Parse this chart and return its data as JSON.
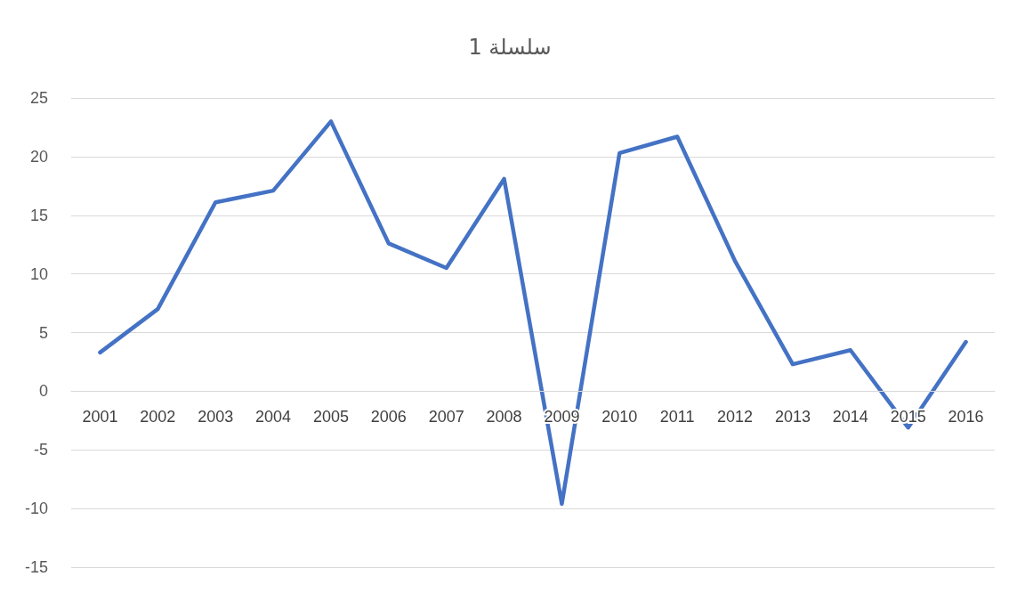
{
  "chart_data": {
    "type": "line",
    "title": "سلسلة 1",
    "categories": [
      "2001",
      "2002",
      "2003",
      "2004",
      "2005",
      "2006",
      "2007",
      "2008",
      "2009",
      "2010",
      "2011",
      "2012",
      "2013",
      "2014",
      "2015",
      "2016"
    ],
    "series": [
      {
        "color": "#4472c4",
        "values": [
          3.3,
          7.0,
          16.1,
          17.1,
          23.0,
          12.6,
          10.5,
          18.1,
          -9.6,
          20.3,
          21.7,
          11.1,
          2.3,
          3.5,
          -3.1,
          4.2
        ]
      }
    ],
    "ylim": [
      -15,
      25
    ],
    "yticks": [
      -15,
      -10,
      -5,
      0,
      5,
      10,
      15,
      20,
      25
    ],
    "grid": "y",
    "marker": "none",
    "line_style": "solid"
  }
}
